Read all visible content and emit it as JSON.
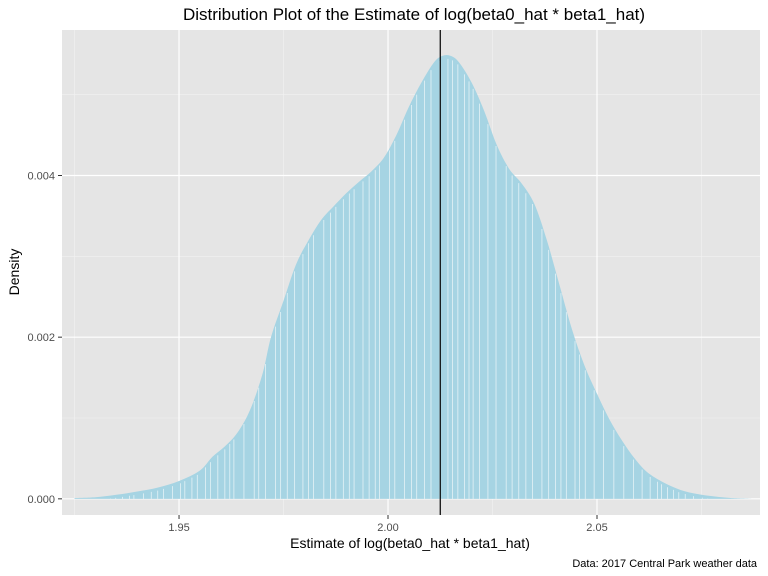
{
  "chart_data": {
    "type": "area",
    "title": "Distribution Plot of the Estimate of log(beta0_hat * beta1_hat)",
    "xlabel": "Estimate of log(beta0_hat * beta1_hat)",
    "ylabel": "Density",
    "caption": "Data: 2017 Central Park weather data",
    "xlim": [
      1.922,
      2.089
    ],
    "ylim": [
      -0.0002,
      0.0058
    ],
    "x_ticks": [
      1.95,
      2.0,
      2.05
    ],
    "x_tick_labels": [
      "1.95",
      "2.00",
      "2.05"
    ],
    "y_ticks": [
      0.0,
      0.002,
      0.004
    ],
    "y_tick_labels": [
      "0.000",
      "0.002",
      "0.004"
    ],
    "vline_x": 2.0125,
    "fill_color": "#a6d4e3",
    "panel_color": "#e5e5e5",
    "grid": true,
    "density_x": [
      1.925,
      1.93,
      1.935,
      1.94,
      1.945,
      1.95,
      1.955,
      1.958,
      1.961,
      1.964,
      1.967,
      1.97,
      1.972,
      1.975,
      1.978,
      1.981,
      1.984,
      1.987,
      1.99,
      1.993,
      1.996,
      1.999,
      2.002,
      2.005,
      2.008,
      2.011,
      2.013,
      2.015,
      2.017,
      2.02,
      2.023,
      2.026,
      2.029,
      2.032,
      2.035,
      2.038,
      2.041,
      2.044,
      2.047,
      2.05,
      2.053,
      2.056,
      2.059,
      2.062,
      2.066,
      2.07,
      2.074,
      2.078,
      2.082,
      2.087
    ],
    "density_y": [
      1e-05,
      2e-05,
      5e-05,
      9e-05,
      0.00014,
      0.00022,
      0.00035,
      0.00052,
      0.00065,
      0.00082,
      0.0011,
      0.00155,
      0.002,
      0.00245,
      0.0029,
      0.0032,
      0.00345,
      0.00362,
      0.00378,
      0.00392,
      0.00405,
      0.00422,
      0.0045,
      0.00485,
      0.00515,
      0.0054,
      0.00548,
      0.00548,
      0.0054,
      0.00515,
      0.0048,
      0.00438,
      0.00408,
      0.0039,
      0.00365,
      0.0032,
      0.00265,
      0.0021,
      0.00165,
      0.0013,
      0.00098,
      0.00072,
      0.0005,
      0.00033,
      0.0002,
      0.00011,
      6e-05,
      3e-05,
      1e-05,
      0.0
    ]
  }
}
